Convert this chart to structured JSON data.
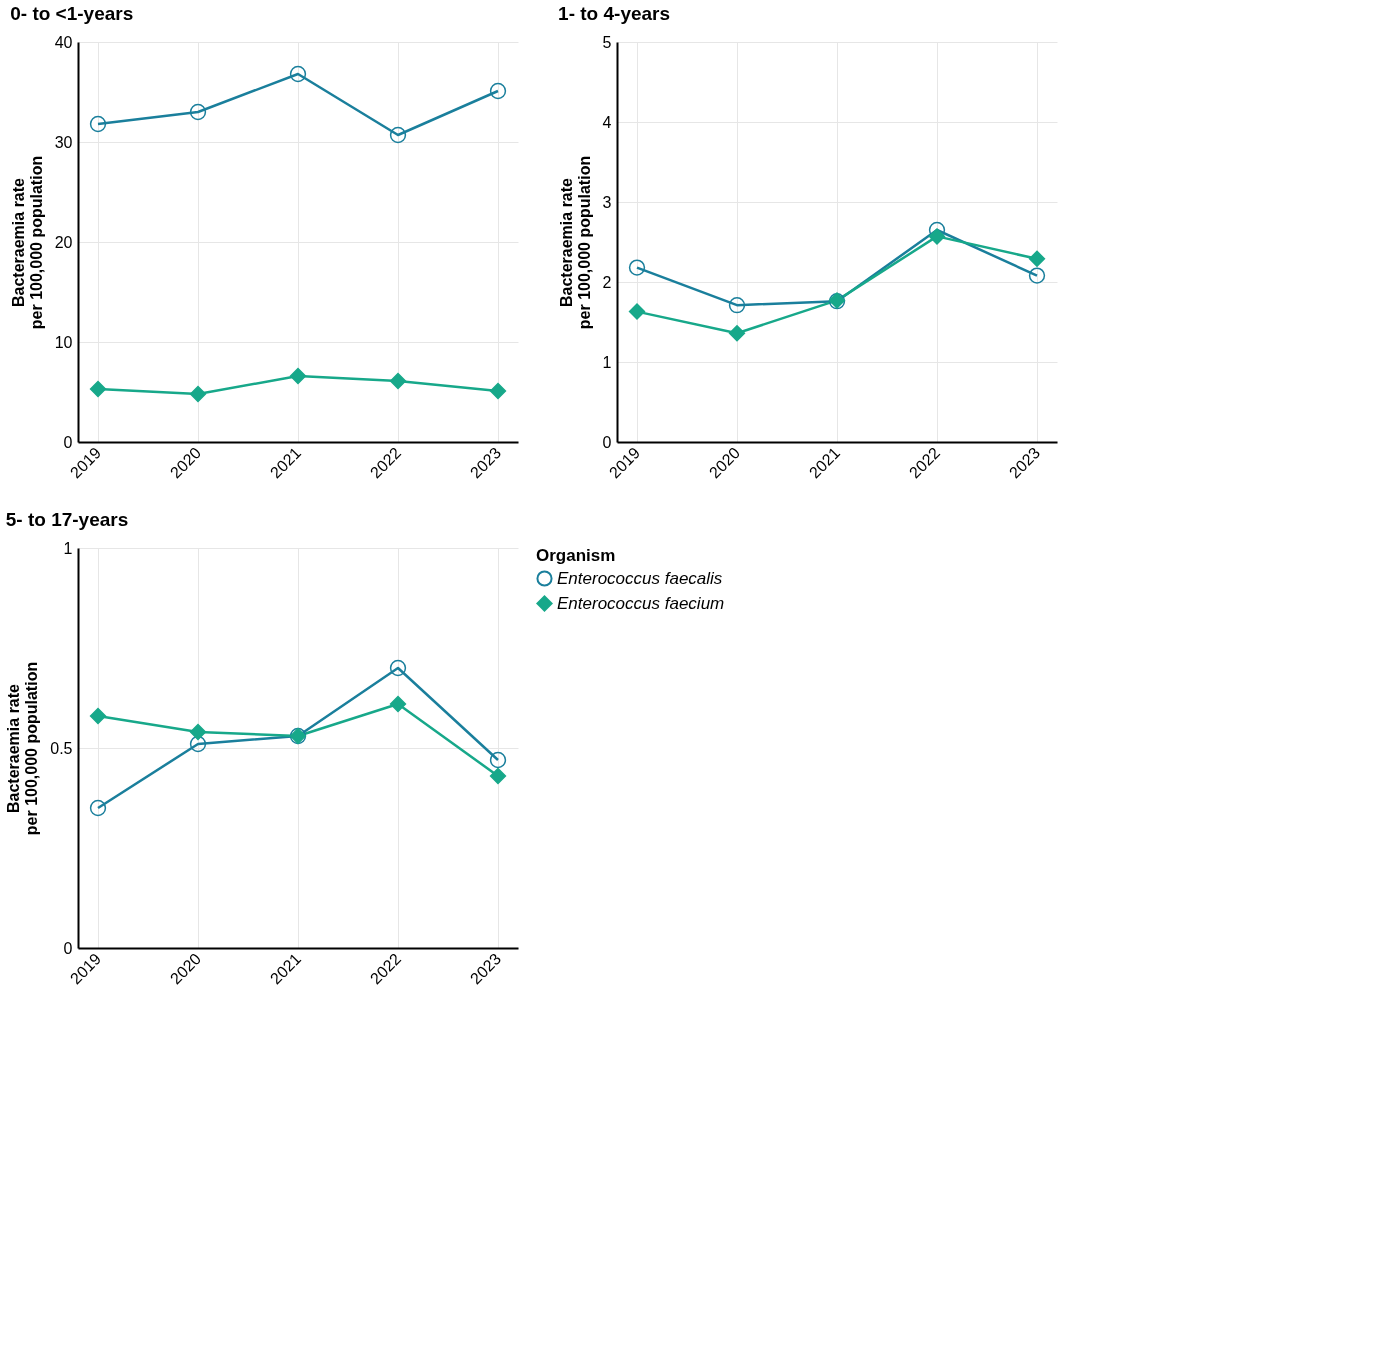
{
  "chart_data": [
    {
      "type": "line",
      "title": "0- to <1-years",
      "ylabel": "Bacteraemia rate\nper 100,000 population",
      "categories": [
        "2019",
        "2020",
        "2021",
        "2022",
        "2023"
      ],
      "ylim": [
        0,
        40
      ],
      "yticks": [
        0,
        10,
        20,
        30,
        40
      ],
      "grid": true,
      "series": [
        {
          "color": "#1a7f9c",
          "marker": "circle",
          "values": [
            31.8,
            33.0,
            36.8,
            30.7,
            35.1
          ]
        },
        {
          "color": "#17a88a",
          "marker": "diamond",
          "values": [
            5.3,
            4.8,
            6.6,
            6.1,
            5.1
          ]
        }
      ]
    },
    {
      "type": "line",
      "title": "1- to 4-years",
      "ylabel": "Bacteraemia rate\nper 100,000 population",
      "categories": [
        "2019",
        "2020",
        "2021",
        "2022",
        "2023"
      ],
      "ylim": [
        0,
        5
      ],
      "yticks": [
        0,
        1,
        2,
        3,
        4,
        5
      ],
      "grid": true,
      "series": [
        {
          "color": "#1a7f9c",
          "marker": "circle",
          "values": [
            2.18,
            1.71,
            1.76,
            2.65,
            2.08
          ]
        },
        {
          "color": "#17a88a",
          "marker": "diamond",
          "values": [
            1.63,
            1.36,
            1.77,
            2.57,
            2.29
          ]
        }
      ]
    },
    {
      "type": "line",
      "title": "5- to 17-years",
      "ylabel": "Bacteraemia rate\nper 100,000 population",
      "categories": [
        "2019",
        "2020",
        "2021",
        "2022",
        "2023"
      ],
      "ylim": [
        0,
        1
      ],
      "yticks": [
        0,
        0.5,
        1
      ],
      "grid": true,
      "legend": "right",
      "legend_title": "Organism",
      "series": [
        {
          "name": "Enterococcus faecalis",
          "color": "#1a7f9c",
          "marker": "circle",
          "values": [
            0.35,
            0.51,
            0.53,
            0.7,
            0.47
          ]
        },
        {
          "name": "Enterococcus faecium",
          "color": "#17a88a",
          "marker": "diamond",
          "values": [
            0.58,
            0.54,
            0.53,
            0.61,
            0.43
          ]
        }
      ]
    }
  ]
}
